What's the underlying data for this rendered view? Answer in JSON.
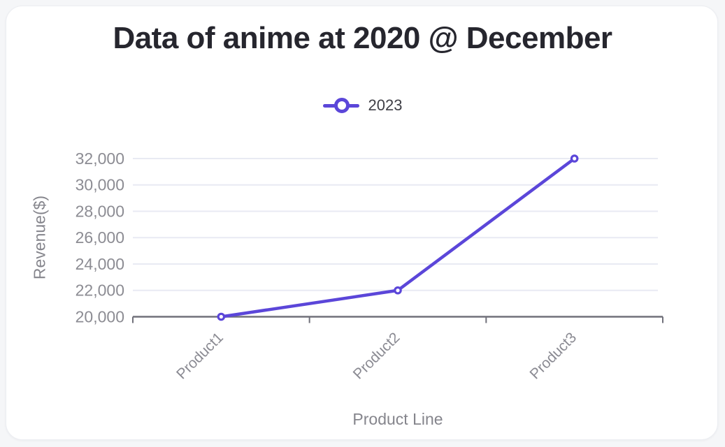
{
  "page": {
    "background_color": "#f5f6f8",
    "card_color": "#ffffff"
  },
  "chart_data": {
    "type": "line",
    "title": "Data of anime at 2020 @ December",
    "categories": [
      "Product1",
      "Product2",
      "Product3"
    ],
    "series": [
      {
        "name": "2023",
        "values": [
          20000,
          22000,
          32000
        ],
        "color": "#5b46d9",
        "marker": "open-circle"
      }
    ],
    "xlabel": "Product Line",
    "ylabel": "Revenue($)",
    "ylim": [
      20000,
      32000
    ],
    "ytick_step": 2000,
    "ytick_labels": [
      "20,000",
      "22,000",
      "24,000",
      "26,000",
      "28,000",
      "30,000",
      "32,000"
    ],
    "grid": true,
    "legend_position": "top-center",
    "colors": {
      "accent": "#5b46d9",
      "title_text": "#26262e",
      "legend_text": "#3f3f46",
      "tick_text": "#8c8c93",
      "axis_title_text": "#85858c",
      "gridline": "#e8eaf3",
      "axis_line": "#70707a"
    }
  }
}
